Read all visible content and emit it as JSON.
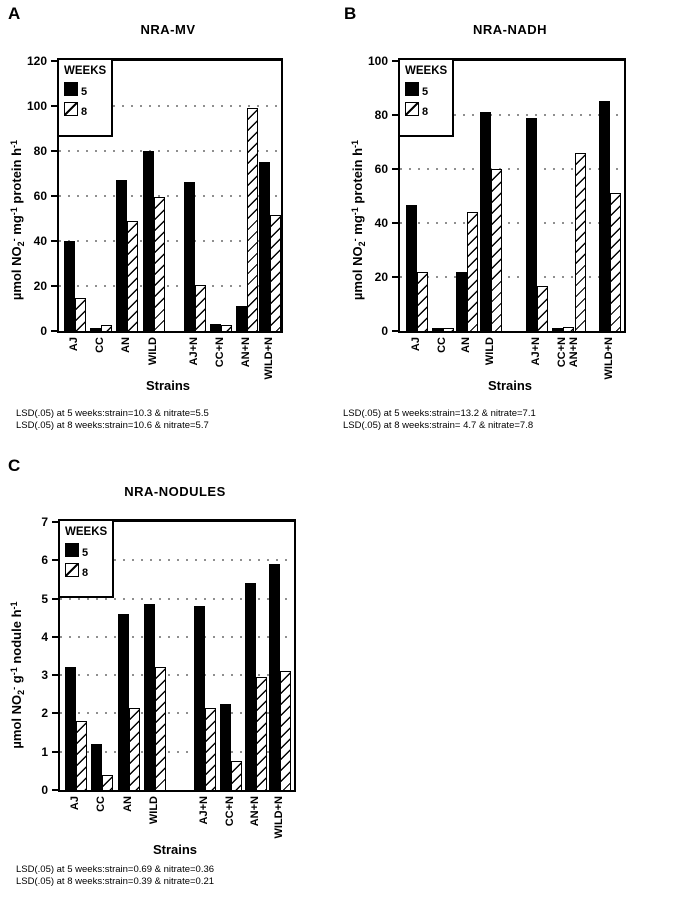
{
  "figure": {
    "background": "#ffffff",
    "text_color": "#000000",
    "grid_color": "#8f8f8f"
  },
  "chart_data": [
    {
      "type": "bar",
      "panel_label": "A",
      "title": "NRA-MV",
      "xlabel": "Strains",
      "ylabel": "µmol NO2- mg-1 protein h-1",
      "ylabel_tokens": [
        [
          "t",
          "µmol NO"
        ],
        [
          "sub",
          "2"
        ],
        [
          "sup",
          "-"
        ],
        [
          "t",
          " mg"
        ],
        [
          "sup",
          "-1"
        ],
        [
          "t",
          " protein h"
        ],
        [
          "sup",
          "-1"
        ]
      ],
      "ylim": [
        0,
        120
      ],
      "ytick_step": 20,
      "grid": "dotted-horizontal",
      "legend_title": "WEEKS",
      "legend_position": "upper-left-inside",
      "categories": [
        "AJ",
        "CC",
        "AN",
        "WILD",
        "AJ+N",
        "CC+N",
        "AN+N",
        "WILD+N"
      ],
      "series": [
        {
          "name": "5",
          "fill": "solid-black",
          "values": [
            40,
            1.5,
            67,
            80,
            66,
            3,
            11,
            75
          ]
        },
        {
          "name": "8",
          "fill": "white-diagonal-hatch",
          "values": [
            14.5,
            2.5,
            49,
            59.5,
            20.5,
            2.5,
            99,
            51.5
          ]
        }
      ],
      "footnotes": [
        "LSD(.05) at 5 weeks:strain=10.3 & nitrate=5.5",
        "LSD(.05) at 8 weeks:strain=10.6 & nitrate=5.7"
      ]
    },
    {
      "type": "bar",
      "panel_label": "B",
      "title": "NRA-NADH",
      "xlabel": "Strains",
      "ylabel": "µmol NO2- mg-1 protein h-1",
      "ylabel_tokens": [
        [
          "t",
          "µmol NO"
        ],
        [
          "sub",
          "2"
        ],
        [
          "sup",
          "-"
        ],
        [
          "t",
          " mg"
        ],
        [
          "sup",
          "-1"
        ],
        [
          "t",
          " protein h"
        ],
        [
          "sup",
          "-1"
        ]
      ],
      "ylim": [
        0,
        100
      ],
      "ytick_step": 20,
      "grid": "dotted-horizontal",
      "legend_title": "WEEKS",
      "legend_position": "upper-left-inside",
      "categories": [
        "AJ",
        "CC",
        "AN",
        "WILD",
        "AJ+N",
        "CC+N",
        "AN+N",
        "WILD+N"
      ],
      "series": [
        {
          "name": "5",
          "fill": "solid-black",
          "values": [
            46.5,
            1,
            22,
            81,
            79,
            1,
            0,
            85
          ]
        },
        {
          "name": "8",
          "fill": "white-diagonal-hatch",
          "values": [
            22,
            1.2,
            44,
            60,
            16.5,
            1.5,
            66,
            51
          ]
        }
      ],
      "footnotes": [
        "LSD(.05) at 5 weeks:strain=13.2 & nitrate=7.1",
        "LSD(.05) at 8 weeks:strain= 4.7 & nitrate=7.8"
      ]
    },
    {
      "type": "bar",
      "panel_label": "C",
      "title": "NRA-NODULES",
      "xlabel": "Strains",
      "ylabel": "µmol NO2- g-1 nodule h-1",
      "ylabel_tokens": [
        [
          "t",
          "µmol NO"
        ],
        [
          "sub",
          "2"
        ],
        [
          "sup",
          "-"
        ],
        [
          "t",
          " g"
        ],
        [
          "sup",
          "-1"
        ],
        [
          "t",
          " nodule h"
        ],
        [
          "sup",
          "-1"
        ]
      ],
      "ylim": [
        0,
        7
      ],
      "ytick_step": 1,
      "grid": "dotted-horizontal",
      "legend_title": "WEEKS",
      "legend_position": "upper-left-inside",
      "categories": [
        "AJ",
        "CC",
        "AN",
        "WILD",
        "AJ+N",
        "CC+N",
        "AN+N",
        "WILD+N"
      ],
      "series": [
        {
          "name": "5",
          "fill": "solid-black",
          "values": [
            3.2,
            1.2,
            4.6,
            4.85,
            4.8,
            2.25,
            5.4,
            5.9
          ]
        },
        {
          "name": "8",
          "fill": "white-diagonal-hatch",
          "values": [
            1.8,
            0.4,
            2.15,
            3.2,
            2.15,
            0.75,
            2.95,
            3.1
          ]
        }
      ],
      "footnotes": [
        "LSD(.05) at 5 weeks:strain=0.69 & nitrate=0.36",
        "LSD(.05) at 8 weeks:strain=0.39 & nitrate=0.21"
      ]
    }
  ]
}
